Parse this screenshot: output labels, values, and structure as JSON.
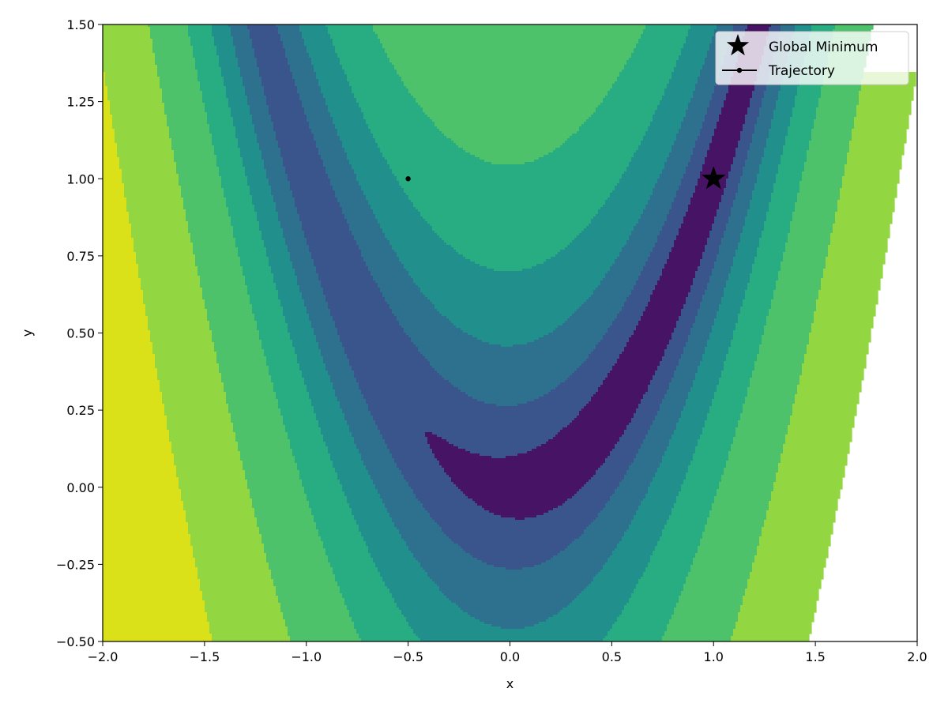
{
  "chart_data": {
    "type": "contour",
    "title": "",
    "xlabel": "x",
    "ylabel": "y",
    "xlim": [
      -2.0,
      2.0
    ],
    "ylim": [
      -0.5,
      1.5
    ],
    "grid": false,
    "function": "rosenbrock (1-x)^2 + 100(y-x^2)^2",
    "xticks": [
      -2.0,
      -1.5,
      -1.0,
      -0.5,
      0.0,
      0.5,
      1.0,
      1.5,
      2.0
    ],
    "yticks": [
      -0.5,
      -0.25,
      0.0,
      0.25,
      0.5,
      0.75,
      1.0,
      1.25,
      1.5
    ],
    "xtick_labels": [
      "−2.0",
      "−1.5",
      "−1.0",
      "−0.5",
      "0.0",
      "0.5",
      "1.0",
      "1.5",
      "2.0"
    ],
    "ytick_labels": [
      "−0.50",
      "−0.25",
      "0.00",
      "0.25",
      "0.50",
      "0.75",
      "1.00",
      "1.25",
      "1.50"
    ],
    "color_levels": [
      "#471365",
      "#3a548c",
      "#2d718e",
      "#218f8c",
      "#27ad81",
      "#4ec26a",
      "#92d742",
      "#dae119"
    ],
    "level_thresholds": [
      2,
      8,
      22,
      50,
      110,
      280,
      700
    ],
    "legend_position": "top-right",
    "series": [
      {
        "name": "Global Minimum",
        "marker": "star",
        "color": "#000000",
        "x": [
          1.0
        ],
        "y": [
          1.0
        ]
      },
      {
        "name": "Trajectory",
        "marker": "dot-line",
        "color": "#000000",
        "x": [
          -0.5
        ],
        "y": [
          1.0
        ]
      }
    ]
  }
}
